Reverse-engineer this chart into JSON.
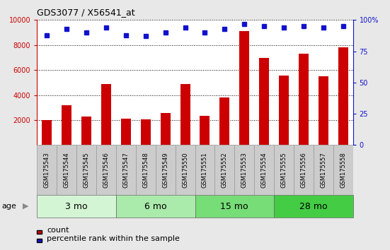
{
  "title": "GDS3077 / X56541_at",
  "samples": [
    "GSM175543",
    "GSM175544",
    "GSM175545",
    "GSM175546",
    "GSM175547",
    "GSM175548",
    "GSM175549",
    "GSM175550",
    "GSM175551",
    "GSM175552",
    "GSM175553",
    "GSM175554",
    "GSM175555",
    "GSM175556",
    "GSM175557",
    "GSM175558"
  ],
  "counts": [
    2000,
    3200,
    2300,
    4900,
    2100,
    2050,
    2550,
    4850,
    2350,
    3800,
    9100,
    6950,
    5550,
    7300,
    5500,
    7800
  ],
  "percentile_ranks": [
    88,
    93,
    90,
    94,
    88,
    87,
    90,
    94,
    90,
    93,
    97,
    95,
    94,
    95,
    94,
    95
  ],
  "bar_color": "#cc0000",
  "dot_color": "#1111cc",
  "ylim_left": [
    0,
    10000
  ],
  "ylim_right": [
    0,
    100
  ],
  "yticks_left": [
    2000,
    4000,
    6000,
    8000,
    10000
  ],
  "yticks_right": [
    0,
    25,
    50,
    75,
    100
  ],
  "groups": [
    {
      "label": "3 mo",
      "start": 0,
      "end": 4,
      "color": "#d4f5d4"
    },
    {
      "label": "6 mo",
      "start": 4,
      "end": 8,
      "color": "#aaeaaa"
    },
    {
      "label": "15 mo",
      "start": 8,
      "end": 12,
      "color": "#77dd77"
    },
    {
      "label": "28 mo",
      "start": 12,
      "end": 16,
      "color": "#44cc44"
    }
  ],
  "age_label": "age",
  "legend_count_label": "count",
  "legend_percentile_label": "percentile rank within the sample",
  "bg_color": "#e8e8e8",
  "plot_bg": "#ffffff",
  "label_bg": "#cccccc",
  "left_axis_color": "#cc0000",
  "right_axis_color": "#1111cc",
  "title_fontsize": 9,
  "tick_fontsize": 7,
  "legend_fontsize": 8
}
